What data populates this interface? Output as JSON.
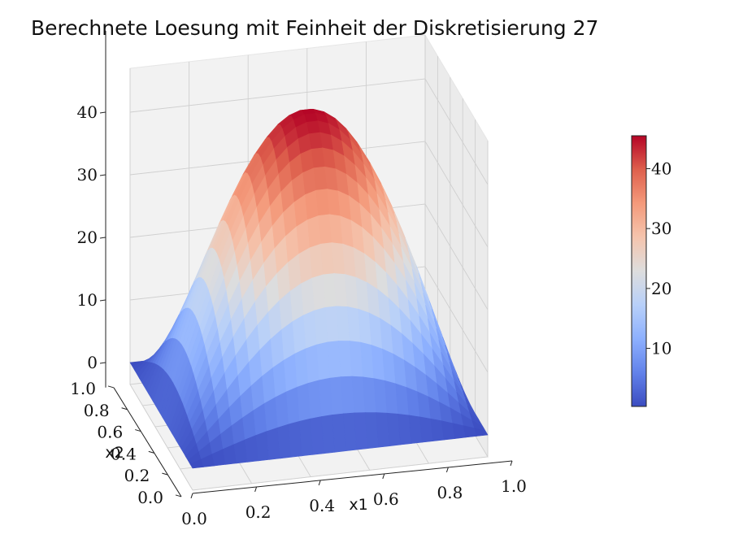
{
  "chart_data": {
    "type": "surface3d",
    "title": "Berechnete Loesung mit Feinheit der Diskretisierung 27",
    "xlabel": "x1",
    "ylabel": "x2",
    "zlabel": "",
    "x_range": [
      0.0,
      1.0
    ],
    "y_range": [
      0.0,
      1.0
    ],
    "z_range": [
      0,
      45
    ],
    "grid": true,
    "x_ticks": [
      "0.0",
      "0.2",
      "0.4",
      "0.6",
      "0.8",
      "1.0"
    ],
    "y_ticks": [
      "0.0",
      "0.2",
      "0.4",
      "0.6",
      "0.8",
      "1.0"
    ],
    "z_ticks": [
      "0",
      "10",
      "20",
      "30",
      "40"
    ],
    "resolution": 27,
    "surface_function": "z = 46 * sin(pi*x1) * sin(pi*x2)",
    "z_max": 46,
    "colormap": "coolwarm",
    "colorbar": {
      "ticks": [
        "10",
        "20",
        "30",
        "40"
      ],
      "range": [
        0.3,
        45.5
      ]
    }
  }
}
